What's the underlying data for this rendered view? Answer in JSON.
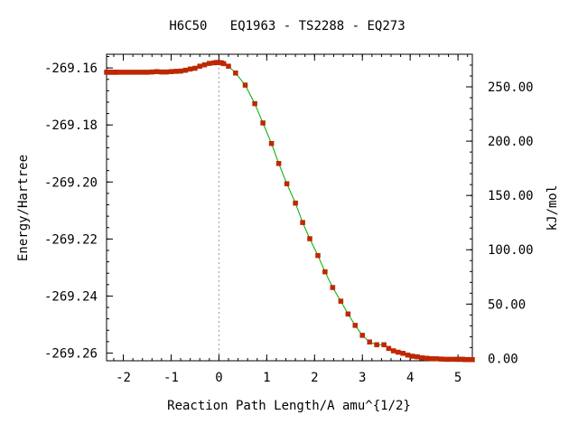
{
  "chart_data": {
    "type": "line",
    "title": "H6C50   EQ1963 - TS2288 - EQ273",
    "xlabel": "Reaction Path Length/A amu^{1/2}",
    "ylabel": "Energy/Hartree",
    "y2label": "kJ/mol",
    "xlim": [
      -2.35,
      5.3
    ],
    "ylim": [
      -269.2627,
      -269.1552
    ],
    "y2lim": [
      -2.18,
      280.0
    ],
    "x_ticks": [
      "-2",
      "-1",
      "0",
      "1",
      "2",
      "3",
      "4",
      "5"
    ],
    "y_ticks": [
      "-269.16",
      "-269.18",
      "-269.20",
      "-269.22",
      "-269.24",
      "-269.26"
    ],
    "y2_ticks": [
      "0.00",
      "50.00",
      "100.00",
      "150.00",
      "200.00",
      "250.00"
    ],
    "ts_marker_x": 0,
    "series": [
      {
        "line_color": "#00aa00",
        "marker_color": "#cc2200",
        "x": [
          -2.35,
          -2.3,
          -2.25,
          -2.2,
          -2.15,
          -2.1,
          -2.0,
          -1.9,
          -1.8,
          -1.7,
          -1.6,
          -1.5,
          -1.4,
          -1.3,
          -1.2,
          -1.1,
          -1.0,
          -0.9,
          -0.8,
          -0.7,
          -0.6,
          -0.5,
          -0.4,
          -0.3,
          -0.2,
          -0.1,
          -0.05,
          0.0,
          0.05,
          0.1,
          0.2,
          0.35,
          0.55,
          0.75,
          0.92,
          1.1,
          1.25,
          1.42,
          1.6,
          1.75,
          1.9,
          2.07,
          2.22,
          2.38,
          2.55,
          2.7,
          2.85,
          3.0,
          3.15,
          3.3,
          3.45,
          3.55,
          3.65,
          3.75,
          3.85,
          3.95,
          4.05,
          4.15,
          4.25,
          4.35,
          4.45,
          4.55,
          4.65,
          4.75,
          4.85,
          4.95,
          5.0,
          5.05,
          5.1,
          5.15,
          5.2,
          5.25,
          5.3
        ],
        "y": [
          -269.1615,
          -269.1615,
          -269.1615,
          -269.1615,
          -269.1615,
          -269.1615,
          -269.1615,
          -269.1615,
          -269.1615,
          -269.1615,
          -269.1615,
          -269.1615,
          -269.1614,
          -269.1613,
          -269.1614,
          -269.1614,
          -269.1613,
          -269.1612,
          -269.1611,
          -269.1608,
          -269.1604,
          -269.1601,
          -269.1594,
          -269.1589,
          -269.1584,
          -269.1582,
          -269.1581,
          -269.1581,
          -269.1582,
          -269.1585,
          -269.1594,
          -269.1618,
          -269.166,
          -269.1725,
          -269.1793,
          -269.1865,
          -269.1935,
          -269.2006,
          -269.2074,
          -269.2142,
          -269.2199,
          -269.2258,
          -269.2315,
          -269.237,
          -269.2418,
          -269.2463,
          -269.2503,
          -269.2538,
          -269.2561,
          -269.2571,
          -269.2571,
          -269.2584,
          -269.2592,
          -269.2597,
          -269.2601,
          -269.2607,
          -269.2611,
          -269.2613,
          -269.2617,
          -269.2618,
          -269.262,
          -269.262,
          -269.2621,
          -269.2622,
          -269.2622,
          -269.2622,
          -269.2622,
          -269.2622,
          -269.2622,
          -269.2623,
          -269.2623,
          -269.2623,
          -269.2623
        ]
      }
    ]
  }
}
